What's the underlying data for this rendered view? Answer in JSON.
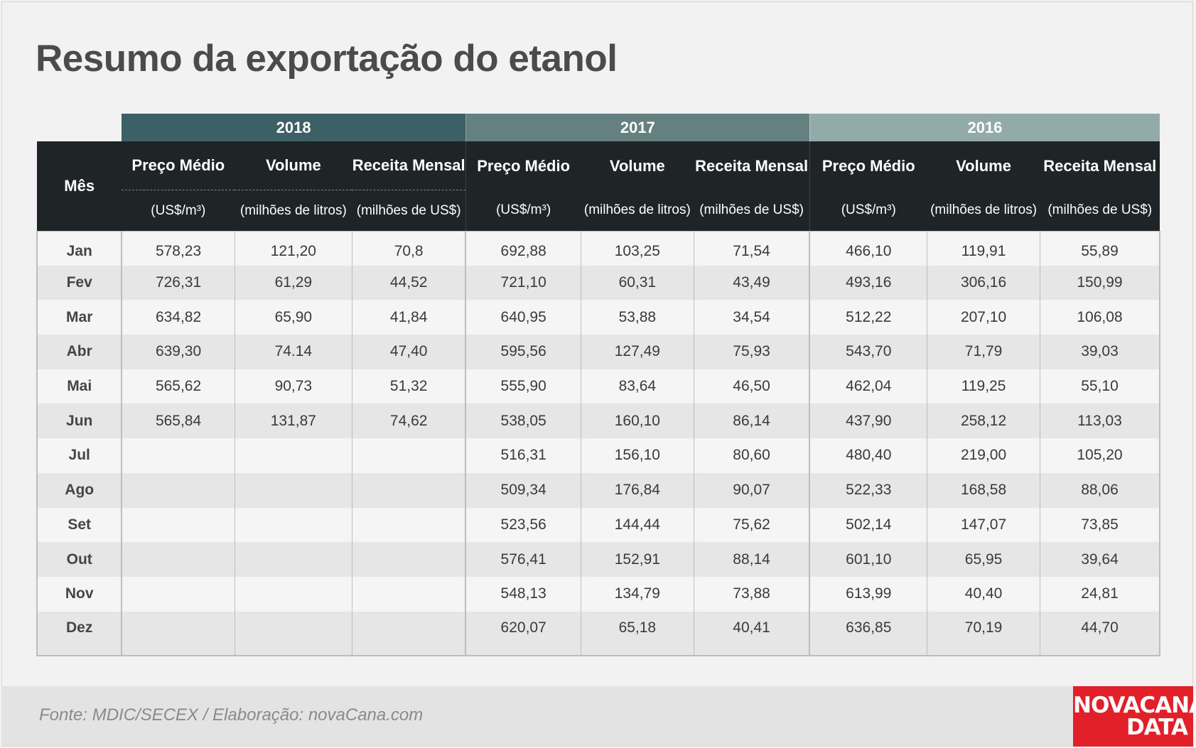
{
  "title": "Resumo da exportação do etanol",
  "footer": {
    "source": "Fonte: MDIC/SECEX  / Elaboração: novaCana.com",
    "logo_line1": "NOVACANA",
    "logo_line2": "DATA"
  },
  "colors": {
    "y2018": "#3c6066",
    "y2017": "#658081",
    "y2016": "#93aaab",
    "header": "#1f2526",
    "logo": "#e2202a"
  },
  "chart_data": {
    "type": "table",
    "title": "Resumo da exportação do etanol",
    "month_header": "Mês",
    "years": [
      "2018",
      "2017",
      "2016"
    ],
    "columns": [
      {
        "name": "Preço Médio",
        "unit": "(US$/m³)"
      },
      {
        "name": "Volume",
        "unit": "(milhões de litros)"
      },
      {
        "name": "Receita Mensal",
        "unit": "(milhões de US$)"
      }
    ],
    "rows": [
      {
        "month": "Jan",
        "y2018": [
          "578,23",
          "121,20",
          "70,8"
        ],
        "y2017": [
          "692,88",
          "103,25",
          "71,54"
        ],
        "y2016": [
          "466,10",
          "119,91",
          "55,89"
        ]
      },
      {
        "month": "Fev",
        "y2018": [
          "726,31",
          "61,29",
          "44,52"
        ],
        "y2017": [
          "721,10",
          "60,31",
          "43,49"
        ],
        "y2016": [
          "493,16",
          "306,16",
          "150,99"
        ]
      },
      {
        "month": "Mar",
        "y2018": [
          "634,82",
          "65,90",
          "41,84"
        ],
        "y2017": [
          "640,95",
          "53,88",
          "34,54"
        ],
        "y2016": [
          "512,22",
          "207,10",
          "106,08"
        ]
      },
      {
        "month": "Abr",
        "y2018": [
          "639,30",
          "74.14",
          "47,40"
        ],
        "y2017": [
          "595,56",
          "127,49",
          "75,93"
        ],
        "y2016": [
          "543,70",
          "71,79",
          "39,03"
        ]
      },
      {
        "month": "Mai",
        "y2018": [
          "565,62",
          "90,73",
          "51,32"
        ],
        "y2017": [
          "555,90",
          "83,64",
          "46,50"
        ],
        "y2016": [
          "462,04",
          "119,25",
          "55,10"
        ]
      },
      {
        "month": "Jun",
        "y2018": [
          "565,84",
          "131,87",
          "74,62"
        ],
        "y2017": [
          "538,05",
          "160,10",
          "86,14"
        ],
        "y2016": [
          "437,90",
          "258,12",
          "113,03"
        ]
      },
      {
        "month": "Jul",
        "y2018": [
          "",
          "",
          ""
        ],
        "y2017": [
          "516,31",
          "156,10",
          "80,60"
        ],
        "y2016": [
          "480,40",
          "219,00",
          "105,20"
        ]
      },
      {
        "month": "Ago",
        "y2018": [
          "",
          "",
          ""
        ],
        "y2017": [
          "509,34",
          "176,84",
          "90,07"
        ],
        "y2016": [
          "522,33",
          "168,58",
          "88,06"
        ]
      },
      {
        "month": "Set",
        "y2018": [
          "",
          "",
          ""
        ],
        "y2017": [
          "523,56",
          "144,44",
          "75,62"
        ],
        "y2016": [
          "502,14",
          "147,07",
          "73,85"
        ]
      },
      {
        "month": "Out",
        "y2018": [
          "",
          "",
          ""
        ],
        "y2017": [
          "576,41",
          "152,91",
          "88,14"
        ],
        "y2016": [
          "601,10",
          "65,95",
          "39,64"
        ]
      },
      {
        "month": "Nov",
        "y2018": [
          "",
          "",
          ""
        ],
        "y2017": [
          "548,13",
          "134,79",
          "73,88"
        ],
        "y2016": [
          "613,99",
          "40,40",
          "24,81"
        ]
      },
      {
        "month": "Dez",
        "y2018": [
          "",
          "",
          ""
        ],
        "y2017": [
          "620,07",
          "65,18",
          "40,41"
        ],
        "y2016": [
          "636,85",
          "70,19",
          "44,70"
        ]
      }
    ]
  }
}
